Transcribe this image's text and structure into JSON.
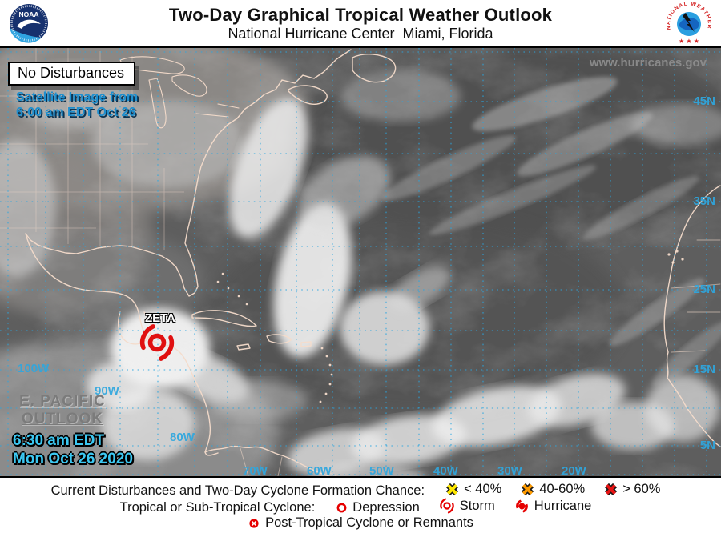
{
  "header": {
    "title": "Two-Day Graphical Tropical Weather Outlook",
    "subtitle": "National Hurricane Center  Miami, Florida",
    "noaa_logo_text": "NOAA",
    "nws_logo_text": "NATIONAL WEATHER SERVICE"
  },
  "map": {
    "banner": "No Disturbances",
    "satellite_caption_line1": "Satellite Image from",
    "satellite_caption_line2": "6:00 am EDT Oct 26",
    "website": "www.hurricanes.gov",
    "storm_name": "ZETA",
    "pacific_outlook_line1": "E. PACIFIC",
    "pacific_outlook_line2": "OUTLOOK",
    "issued_line1": "6:30 am EDT",
    "issued_line2": "Mon Oct 26 2020",
    "lat_labels": [
      "45N",
      "35N",
      "25N",
      "15N",
      "5N"
    ],
    "lon_labels": [
      "100W",
      "90W",
      "80W",
      "70W",
      "60W",
      "50W",
      "40W",
      "30W",
      "20W"
    ]
  },
  "legend": {
    "row1_label": "Current Disturbances and Two-Day Cyclone Formation Chance:",
    "row1_items": [
      {
        "icon": "x-mark",
        "color": "#ffe800",
        "label": "< 40%"
      },
      {
        "icon": "x-mark",
        "color": "#ff9b00",
        "label": "40-60%"
      },
      {
        "icon": "x-mark",
        "color": "#e81313",
        "label": "> 60%"
      }
    ],
    "row2_label": "Tropical or Sub-Tropical Cyclone:",
    "row2_items": [
      {
        "icon": "depression",
        "color": "#e60000",
        "label": "Depression"
      },
      {
        "icon": "storm",
        "color": "#e60000",
        "label": "Storm"
      },
      {
        "icon": "hurricane",
        "color": "#e60000",
        "label": "Hurricane"
      }
    ],
    "row3_items": [
      {
        "icon": "post-tropical",
        "color": "#e60000",
        "label": "Post-Tropical Cyclone or Remnants"
      }
    ]
  },
  "colors": {
    "geo_label": "#2fa7df",
    "issued_text": "#3cc8f2",
    "caption_text": "#1f8fce",
    "storm_icon": "#e01010",
    "coastline": "#f5dccb"
  }
}
